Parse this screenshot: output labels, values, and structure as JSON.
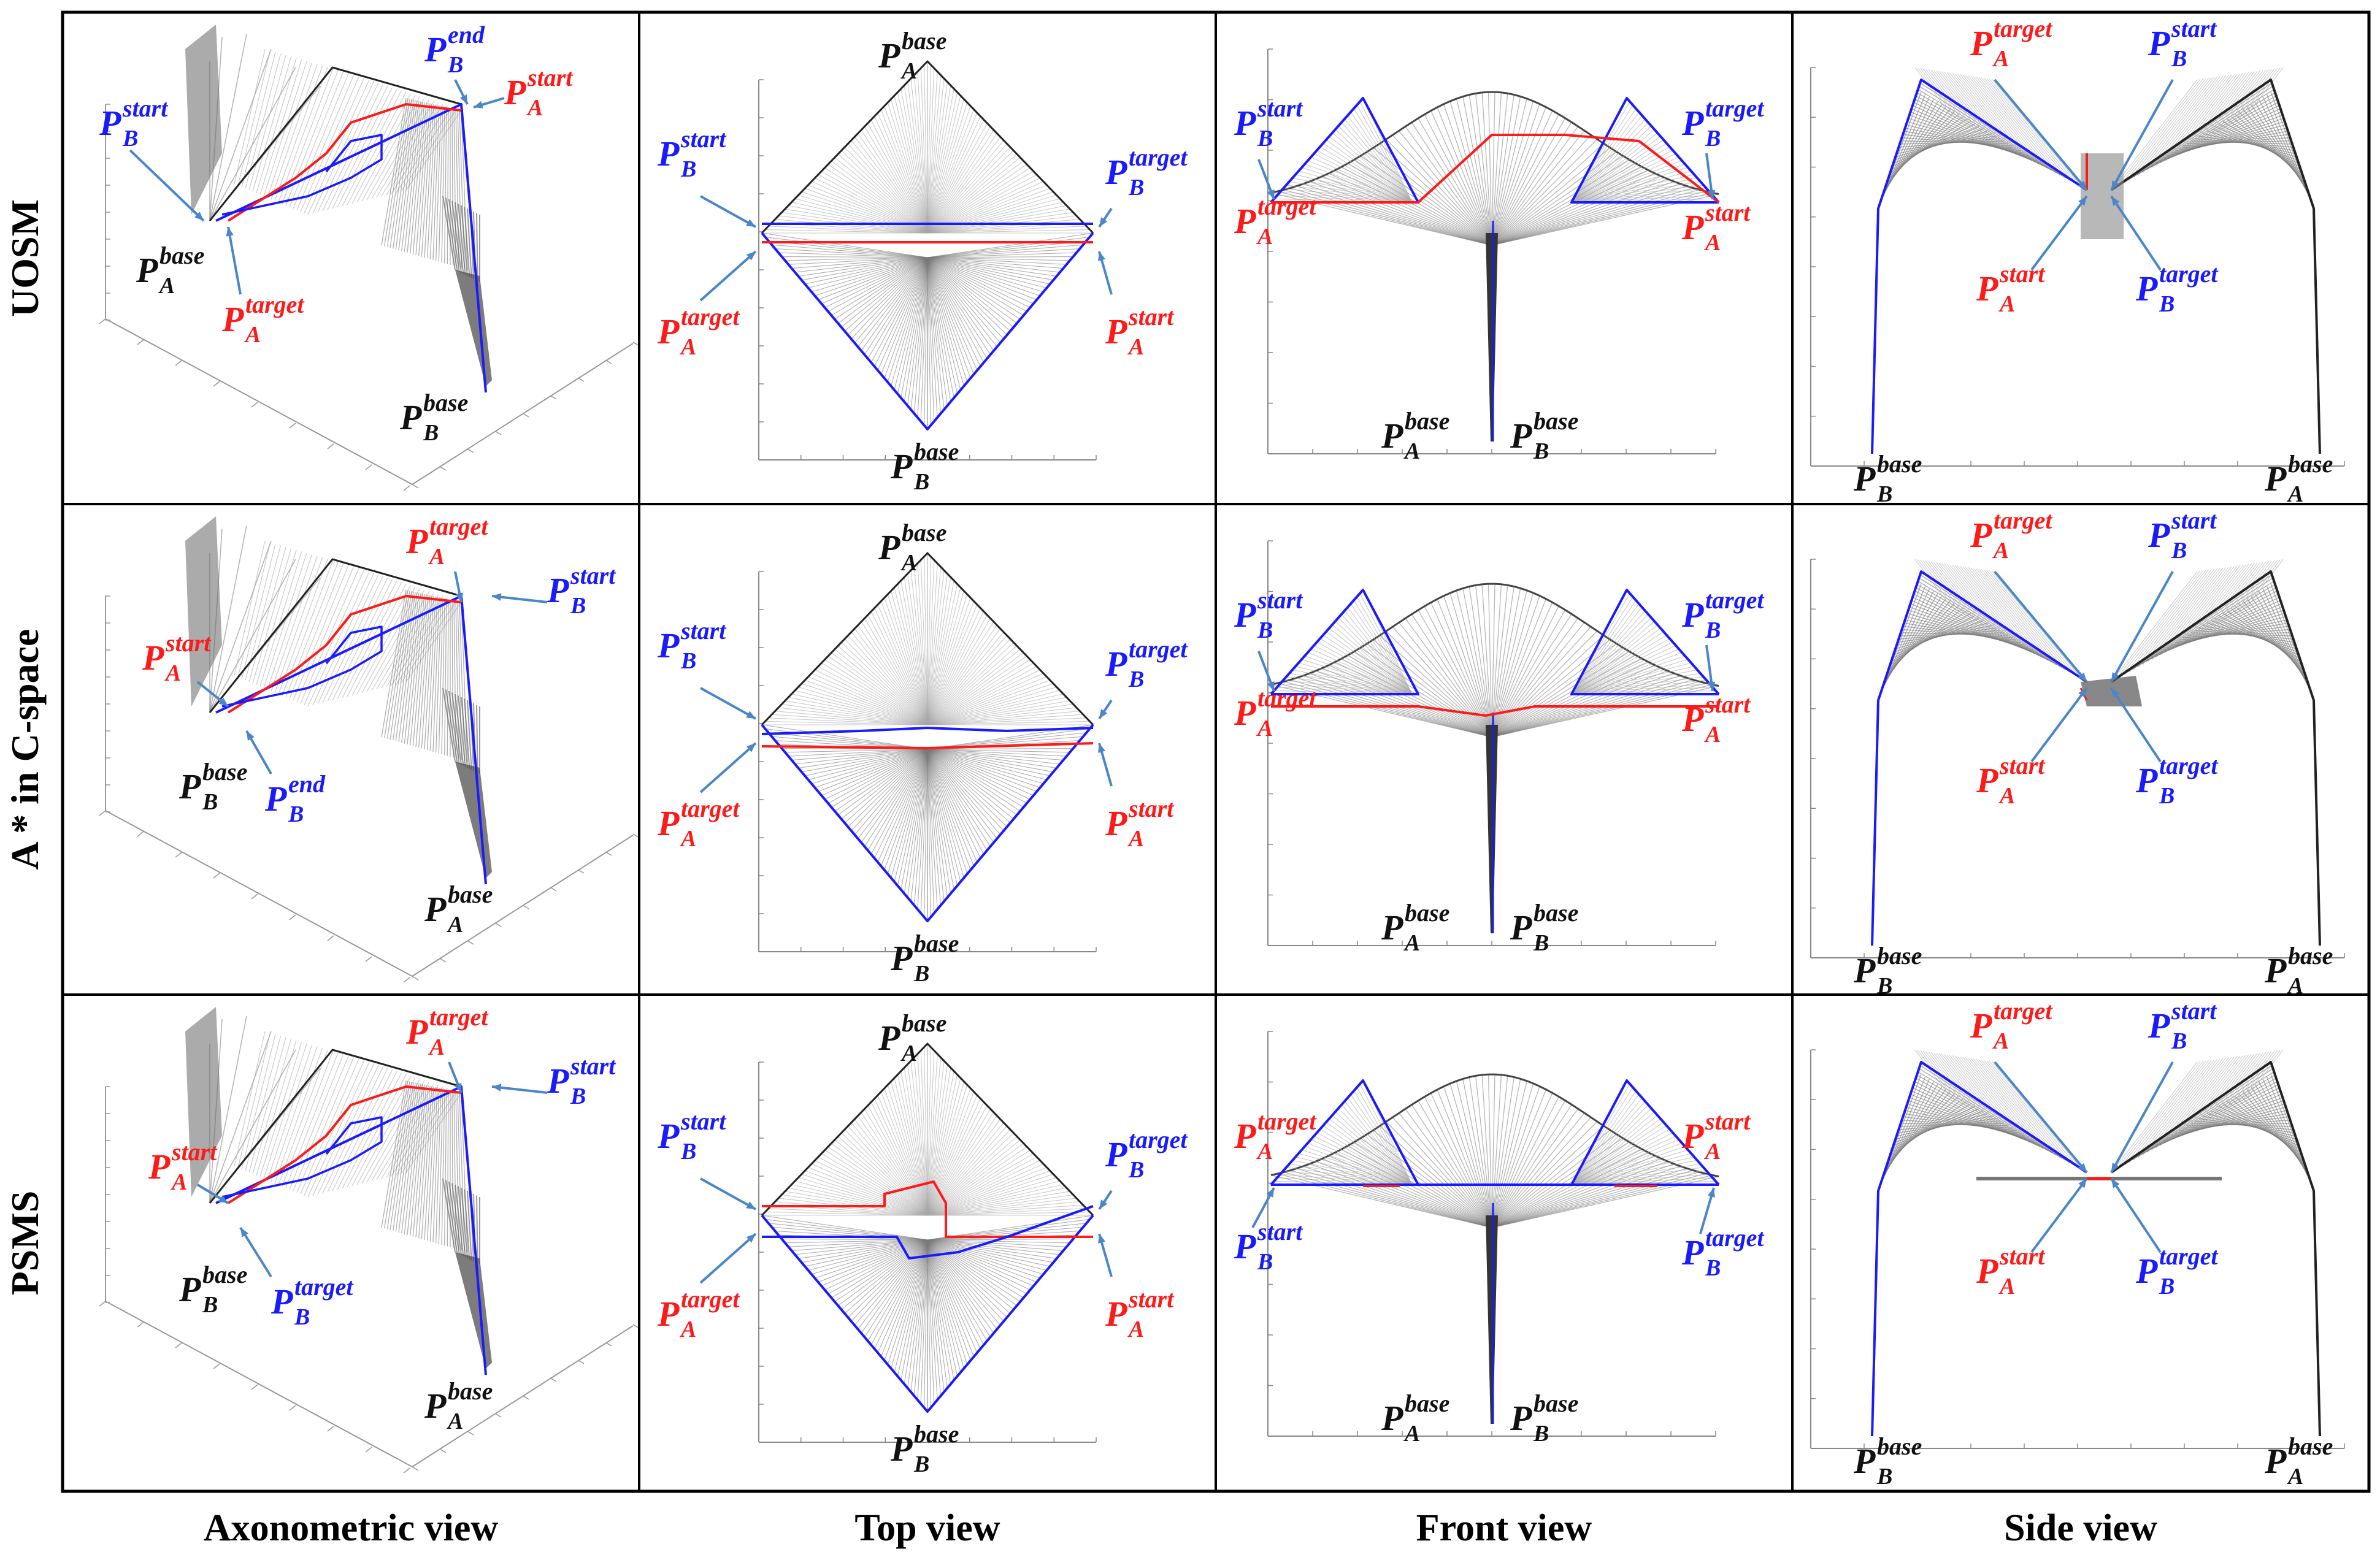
{
  "colors": {
    "red": "#ff1a1a",
    "blue": "#1a1aff",
    "black": "#111111",
    "shade": "#8a8a8a"
  },
  "rows": [
    "UOSM",
    "A * in C-space",
    "PSMS"
  ],
  "columns": [
    "Axonometric view",
    "Top view",
    "Front view",
    "Side view"
  ],
  "letter": "P",
  "panels": [
    [
      {
        "labels": [
          {
            "c": "blue",
            "sub": "B",
            "sup": "start"
          },
          {
            "c": "blue",
            "sub": "B",
            "sup": "end"
          },
          {
            "c": "red",
            "sub": "A",
            "sup": "start"
          },
          {
            "c": "black",
            "sub": "A",
            "sup": "base"
          },
          {
            "c": "red",
            "sub": "A",
            "sup": "target"
          },
          {
            "c": "black",
            "sub": "B",
            "sup": "base"
          }
        ]
      },
      {
        "labels": [
          {
            "c": "black",
            "sub": "A",
            "sup": "base"
          },
          {
            "c": "blue",
            "sub": "B",
            "sup": "start"
          },
          {
            "c": "blue",
            "sub": "B",
            "sup": "target"
          },
          {
            "c": "red",
            "sub": "A",
            "sup": "target"
          },
          {
            "c": "red",
            "sub": "A",
            "sup": "start"
          },
          {
            "c": "black",
            "sub": "B",
            "sup": "base"
          }
        ]
      },
      {
        "labels": [
          {
            "c": "blue",
            "sub": "B",
            "sup": "start"
          },
          {
            "c": "blue",
            "sub": "B",
            "sup": "target"
          },
          {
            "c": "red",
            "sub": "A",
            "sup": "target"
          },
          {
            "c": "red",
            "sub": "A",
            "sup": "start"
          },
          {
            "c": "black",
            "sub": "A",
            "sup": "base"
          },
          {
            "c": "black",
            "sub": "B",
            "sup": "base"
          }
        ]
      },
      {
        "labels": [
          {
            "c": "red",
            "sub": "A",
            "sup": "target"
          },
          {
            "c": "blue",
            "sub": "B",
            "sup": "start"
          },
          {
            "c": "red",
            "sub": "A",
            "sup": "start"
          },
          {
            "c": "blue",
            "sub": "B",
            "sup": "target"
          },
          {
            "c": "black",
            "sub": "B",
            "sup": "base"
          },
          {
            "c": "black",
            "sub": "A",
            "sup": "base"
          }
        ]
      }
    ],
    [
      {
        "labels": [
          {
            "c": "red",
            "sub": "A",
            "sup": "target"
          },
          {
            "c": "blue",
            "sub": "B",
            "sup": "start"
          },
          {
            "c": "red",
            "sub": "A",
            "sup": "start"
          },
          {
            "c": "black",
            "sub": "B",
            "sup": "base"
          },
          {
            "c": "blue",
            "sub": "B",
            "sup": "end"
          },
          {
            "c": "black",
            "sub": "A",
            "sup": "base"
          }
        ]
      },
      {
        "labels": [
          {
            "c": "black",
            "sub": "A",
            "sup": "base"
          },
          {
            "c": "blue",
            "sub": "B",
            "sup": "start"
          },
          {
            "c": "blue",
            "sub": "B",
            "sup": "target"
          },
          {
            "c": "red",
            "sub": "A",
            "sup": "target"
          },
          {
            "c": "red",
            "sub": "A",
            "sup": "start"
          },
          {
            "c": "black",
            "sub": "B",
            "sup": "base"
          }
        ]
      },
      {
        "labels": [
          {
            "c": "blue",
            "sub": "B",
            "sup": "start"
          },
          {
            "c": "blue",
            "sub": "B",
            "sup": "target"
          },
          {
            "c": "red",
            "sub": "A",
            "sup": "target"
          },
          {
            "c": "red",
            "sub": "A",
            "sup": "start"
          },
          {
            "c": "black",
            "sub": "A",
            "sup": "base"
          },
          {
            "c": "black",
            "sub": "B",
            "sup": "base"
          }
        ]
      },
      {
        "labels": [
          {
            "c": "red",
            "sub": "A",
            "sup": "target"
          },
          {
            "c": "blue",
            "sub": "B",
            "sup": "start"
          },
          {
            "c": "red",
            "sub": "A",
            "sup": "start"
          },
          {
            "c": "blue",
            "sub": "B",
            "sup": "target"
          },
          {
            "c": "black",
            "sub": "B",
            "sup": "base"
          },
          {
            "c": "black",
            "sub": "A",
            "sup": "base"
          }
        ]
      }
    ],
    [
      {
        "labels": [
          {
            "c": "red",
            "sub": "A",
            "sup": "target"
          },
          {
            "c": "blue",
            "sub": "B",
            "sup": "start"
          },
          {
            "c": "red",
            "sub": "A",
            "sup": "start"
          },
          {
            "c": "black",
            "sub": "B",
            "sup": "base"
          },
          {
            "c": "blue",
            "sub": "B",
            "sup": "target"
          },
          {
            "c": "black",
            "sub": "A",
            "sup": "base"
          }
        ]
      },
      {
        "labels": [
          {
            "c": "black",
            "sub": "A",
            "sup": "base"
          },
          {
            "c": "blue",
            "sub": "B",
            "sup": "start"
          },
          {
            "c": "blue",
            "sub": "B",
            "sup": "target"
          },
          {
            "c": "red",
            "sub": "A",
            "sup": "target"
          },
          {
            "c": "red",
            "sub": "A",
            "sup": "start"
          },
          {
            "c": "black",
            "sub": "B",
            "sup": "base"
          }
        ]
      },
      {
        "labels": [
          {
            "c": "red",
            "sub": "A",
            "sup": "target"
          },
          {
            "c": "red",
            "sub": "A",
            "sup": "start"
          },
          {
            "c": "blue",
            "sub": "B",
            "sup": "start"
          },
          {
            "c": "blue",
            "sub": "B",
            "sup": "target"
          },
          {
            "c": "black",
            "sub": "A",
            "sup": "base"
          },
          {
            "c": "black",
            "sub": "B",
            "sup": "base"
          }
        ]
      },
      {
        "labels": [
          {
            "c": "red",
            "sub": "A",
            "sup": "target"
          },
          {
            "c": "blue",
            "sub": "B",
            "sup": "start"
          },
          {
            "c": "red",
            "sub": "A",
            "sup": "start"
          },
          {
            "c": "blue",
            "sub": "B",
            "sup": "target"
          },
          {
            "c": "black",
            "sub": "B",
            "sup": "base"
          },
          {
            "c": "black",
            "sub": "A",
            "sup": "base"
          }
        ]
      }
    ]
  ]
}
